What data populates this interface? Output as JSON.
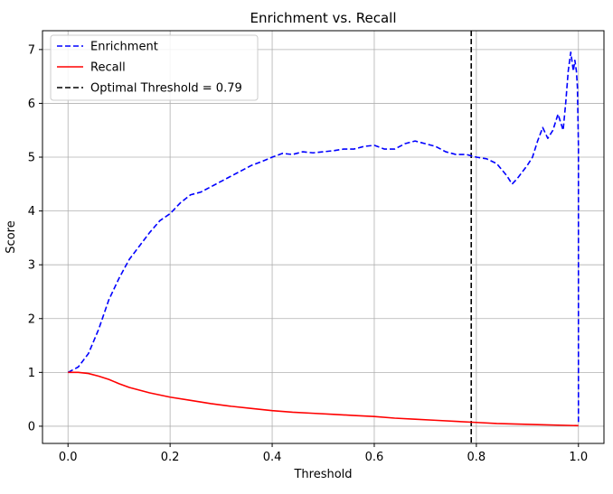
{
  "chart_data": {
    "type": "line",
    "title": "Enrichment vs. Recall",
    "xlabel": "Threshold",
    "ylabel": "Score",
    "xlim": [
      -0.05,
      1.05
    ],
    "ylim": [
      -0.32,
      7.35
    ],
    "xticks": [
      0.0,
      0.2,
      0.4,
      0.6,
      0.8,
      1.0
    ],
    "xtick_labels": [
      "0.0",
      "0.2",
      "0.4",
      "0.6",
      "0.8",
      "1.0"
    ],
    "yticks": [
      0,
      1,
      2,
      3,
      4,
      5,
      6,
      7
    ],
    "ytick_labels": [
      "0",
      "1",
      "2",
      "3",
      "4",
      "5",
      "6",
      "7"
    ],
    "grid": true,
    "legend_position": "top-left",
    "series": [
      {
        "name": "Enrichment",
        "color": "#0000ff",
        "style": "dashed",
        "x": [
          0.0,
          0.02,
          0.04,
          0.06,
          0.08,
          0.1,
          0.12,
          0.14,
          0.16,
          0.18,
          0.2,
          0.22,
          0.24,
          0.26,
          0.28,
          0.3,
          0.32,
          0.34,
          0.36,
          0.38,
          0.4,
          0.42,
          0.44,
          0.46,
          0.48,
          0.5,
          0.52,
          0.54,
          0.56,
          0.58,
          0.6,
          0.62,
          0.64,
          0.66,
          0.68,
          0.7,
          0.72,
          0.74,
          0.76,
          0.78,
          0.8,
          0.82,
          0.84,
          0.86,
          0.87,
          0.88,
          0.9,
          0.91,
          0.92,
          0.93,
          0.94,
          0.95,
          0.96,
          0.97,
          0.975,
          0.98,
          0.985,
          0.99,
          0.993,
          0.996,
          0.998,
          1.0,
          1.0
        ],
        "y": [
          1.0,
          1.1,
          1.35,
          1.8,
          2.35,
          2.75,
          3.1,
          3.35,
          3.6,
          3.82,
          3.95,
          4.15,
          4.3,
          4.35,
          4.45,
          4.55,
          4.65,
          4.75,
          4.85,
          4.92,
          5.0,
          5.07,
          5.05,
          5.1,
          5.08,
          5.1,
          5.12,
          5.15,
          5.15,
          5.2,
          5.22,
          5.15,
          5.15,
          5.25,
          5.3,
          5.25,
          5.2,
          5.1,
          5.05,
          5.05,
          5.0,
          4.97,
          4.88,
          4.65,
          4.5,
          4.6,
          4.85,
          5.0,
          5.3,
          5.55,
          5.35,
          5.5,
          5.8,
          5.5,
          6.0,
          6.6,
          6.95,
          6.6,
          6.8,
          6.6,
          6.3,
          5.2,
          0.03
        ]
      },
      {
        "name": "Recall",
        "color": "#ff0000",
        "style": "solid",
        "x": [
          0.0,
          0.02,
          0.04,
          0.06,
          0.08,
          0.1,
          0.12,
          0.14,
          0.16,
          0.18,
          0.2,
          0.24,
          0.28,
          0.32,
          0.36,
          0.4,
          0.44,
          0.48,
          0.52,
          0.56,
          0.6,
          0.64,
          0.68,
          0.72,
          0.76,
          0.8,
          0.84,
          0.88,
          0.92,
          0.96,
          1.0
        ],
        "y": [
          1.0,
          1.0,
          0.98,
          0.93,
          0.87,
          0.79,
          0.72,
          0.67,
          0.62,
          0.58,
          0.54,
          0.48,
          0.42,
          0.37,
          0.33,
          0.29,
          0.26,
          0.24,
          0.22,
          0.2,
          0.18,
          0.15,
          0.13,
          0.11,
          0.09,
          0.07,
          0.05,
          0.04,
          0.03,
          0.02,
          0.01
        ]
      }
    ],
    "threshold": {
      "name": "Optimal Threshold = 0.79",
      "x": 0.79,
      "color": "#000000",
      "style": "dashed"
    }
  }
}
